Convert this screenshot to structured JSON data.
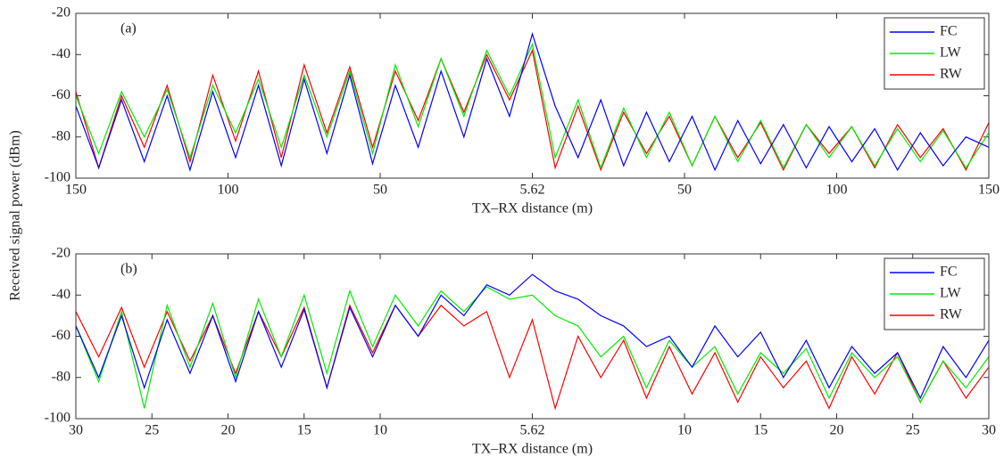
{
  "ylabel": "Received signal power (dBm)",
  "chart_data": [
    {
      "type": "line",
      "annotation": "(a)",
      "xlabel": "TX–RX distance (m)",
      "xlim": [
        -150,
        150
      ],
      "xticks": [
        {
          "value": -150,
          "label": "150"
        },
        {
          "value": -100,
          "label": "100"
        },
        {
          "value": -50,
          "label": "50"
        },
        {
          "value": 0,
          "label": "5.62"
        },
        50,
        100,
        150
      ],
      "ylim": [
        -100,
        -20
      ],
      "yticks": [
        -100,
        -80,
        -60,
        -40,
        -20
      ],
      "legend": "upper right",
      "x": [
        -150,
        -142.5,
        -135,
        -127.5,
        -120,
        -112.5,
        -105,
        -97.5,
        -90,
        -82.5,
        -75,
        -67.5,
        -60,
        -52.5,
        -45,
        -37.5,
        -30,
        -22.5,
        -15,
        -7.5,
        0,
        7.5,
        15,
        22.5,
        30,
        37.5,
        45,
        52.5,
        60,
        67.5,
        75,
        82.5,
        90,
        97.5,
        105,
        112.5,
        120,
        127.5,
        135,
        142.5,
        150
      ],
      "series": [
        {
          "name": "FC",
          "color": "#0000ff",
          "values": [
            -65,
            -95,
            -62,
            -92,
            -60,
            -96,
            -58,
            -90,
            -55,
            -94,
            -52,
            -88,
            -50,
            -93,
            -55,
            -85,
            -48,
            -80,
            -42,
            -70,
            -30,
            -65,
            -90,
            -62,
            -94,
            -68,
            -92,
            -70,
            -96,
            -72,
            -93,
            -74,
            -95,
            -75,
            -92,
            -76,
            -96,
            -78,
            -94,
            -80,
            -85
          ]
        },
        {
          "name": "LW",
          "color": "#00ee00",
          "values": [
            -60,
            -88,
            -58,
            -80,
            -57,
            -90,
            -55,
            -78,
            -52,
            -85,
            -50,
            -80,
            -48,
            -88,
            -45,
            -75,
            -42,
            -70,
            -38,
            -60,
            -35,
            -90,
            -62,
            -95,
            -66,
            -90,
            -68,
            -94,
            -70,
            -92,
            -72,
            -95,
            -74,
            -90,
            -75,
            -94,
            -76,
            -92,
            -77,
            -95,
            -78
          ]
        },
        {
          "name": "RW",
          "color": "#ff0000",
          "values": [
            -58,
            -95,
            -60,
            -85,
            -55,
            -92,
            -50,
            -82,
            -48,
            -90,
            -45,
            -78,
            -46,
            -85,
            -48,
            -72,
            -42,
            -68,
            -40,
            -62,
            -38,
            -95,
            -65,
            -96,
            -68,
            -88,
            -70,
            -94,
            -70,
            -90,
            -73,
            -96,
            -74,
            -88,
            -75,
            -95,
            -74,
            -90,
            -76,
            -96,
            -73
          ]
        }
      ]
    },
    {
      "type": "line",
      "annotation": "(b)",
      "xlabel": "TX–RX distance (m)",
      "xlim": [
        -30,
        30
      ],
      "xticks": [
        {
          "value": -30,
          "label": "30"
        },
        {
          "value": -25,
          "label": "25"
        },
        {
          "value": -20,
          "label": "20"
        },
        {
          "value": -15,
          "label": "15"
        },
        {
          "value": -10,
          "label": "10"
        },
        {
          "value": 0,
          "label": "5.62"
        },
        10,
        15,
        20,
        25,
        30
      ],
      "ylim": [
        -100,
        -20
      ],
      "yticks": [
        -100,
        -80,
        -60,
        -40,
        -20
      ],
      "legend": "upper right",
      "x": [
        -30,
        -28.5,
        -27,
        -25.5,
        -24,
        -22.5,
        -21,
        -19.5,
        -18,
        -16.5,
        -15,
        -13.5,
        -12,
        -10.5,
        -9,
        -7.5,
        -6,
        -4.5,
        -3,
        -1.5,
        0,
        1.5,
        3,
        4.5,
        6,
        7.5,
        9,
        10.5,
        12,
        13.5,
        15,
        16.5,
        18,
        19.5,
        21,
        22.5,
        24,
        25.5,
        27,
        28.5,
        30
      ],
      "series": [
        {
          "name": "FC",
          "color": "#0000ff",
          "values": [
            -55,
            -80,
            -50,
            -85,
            -52,
            -78,
            -50,
            -82,
            -48,
            -75,
            -47,
            -85,
            -46,
            -70,
            -45,
            -60,
            -40,
            -50,
            -35,
            -40,
            -30,
            -38,
            -42,
            -50,
            -55,
            -65,
            -60,
            -75,
            -55,
            -70,
            -58,
            -80,
            -62,
            -85,
            -65,
            -78,
            -68,
            -90,
            -65,
            -80,
            -62
          ]
        },
        {
          "name": "LW",
          "color": "#00ee00",
          "values": [
            -55,
            -82,
            -48,
            -95,
            -45,
            -75,
            -44,
            -80,
            -42,
            -70,
            -40,
            -78,
            -38,
            -65,
            -40,
            -55,
            -38,
            -48,
            -36,
            -42,
            -40,
            -50,
            -55,
            -70,
            -60,
            -85,
            -62,
            -75,
            -65,
            -88,
            -68,
            -78,
            -66,
            -90,
            -68,
            -80,
            -70,
            -92,
            -72,
            -85,
            -70
          ]
        },
        {
          "name": "RW",
          "color": "#ff0000",
          "values": [
            -48,
            -70,
            -46,
            -75,
            -48,
            -72,
            -50,
            -78,
            -48,
            -70,
            -46,
            -85,
            -45,
            -68,
            -45,
            -60,
            -45,
            -55,
            -48,
            -80,
            -52,
            -95,
            -60,
            -80,
            -62,
            -90,
            -65,
            -88,
            -68,
            -92,
            -70,
            -85,
            -72,
            -95,
            -70,
            -88,
            -68,
            -92,
            -72,
            -90,
            -75
          ]
        }
      ]
    }
  ]
}
